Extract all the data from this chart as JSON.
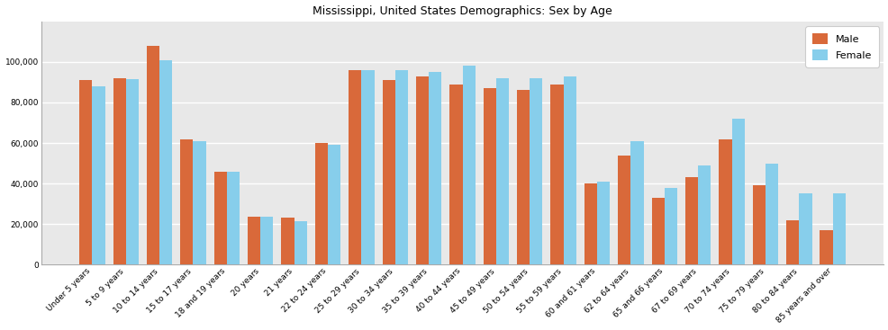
{
  "title": "Mississippi, United States Demographics: Sex by Age",
  "categories": [
    "Under 5 years",
    "5 to 9 years",
    "10 to 14 years",
    "15 to 17 years",
    "18 and 19 years",
    "20 years",
    "21 years",
    "22 to 24 years",
    "25 to 29 years",
    "30 to 34 years",
    "35 to 39 years",
    "40 to 44 years",
    "45 to 49 years",
    "50 to 54 years",
    "55 to 59 years",
    "60 and 61 years",
    "62 to 64 years",
    "65 and 66 years",
    "67 to 69 years",
    "70 to 74 years",
    "75 to 79 years",
    "80 to 84 years",
    "85 years and over"
  ],
  "male": [
    91000,
    92000,
    108000,
    62000,
    46000,
    23500,
    23000,
    60000,
    96000,
    91000,
    93000,
    89000,
    87000,
    86000,
    89000,
    40000,
    54000,
    33000,
    43000,
    62000,
    39000,
    22000,
    17000
  ],
  "female": [
    88000,
    91500,
    101000,
    61000,
    46000,
    23500,
    21500,
    59000,
    96000,
    96000,
    95000,
    98000,
    92000,
    92000,
    93000,
    41000,
    61000,
    38000,
    49000,
    72000,
    50000,
    35000,
    35000
  ],
  "male_color": "#d9693a",
  "female_color": "#87ceeb",
  "ylim": [
    0,
    120000
  ],
  "yticks": [
    0,
    20000,
    40000,
    60000,
    80000,
    100000
  ],
  "plot_bg_color": "#e8e8e8",
  "fig_bg_color": "#ffffff",
  "title_fontsize": 9,
  "tick_fontsize": 6.5,
  "legend_fontsize": 8,
  "bar_width": 0.38
}
